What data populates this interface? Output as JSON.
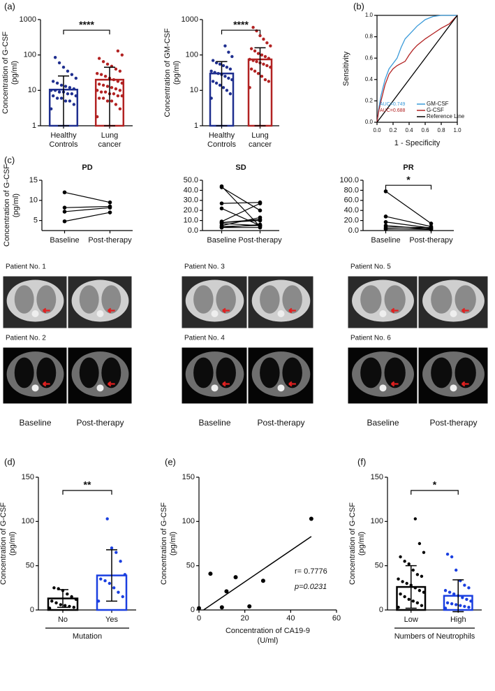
{
  "chart_data": [
    {
      "type": "bar",
      "panel": "(a)",
      "ylabel": [
        "Concentration of G-CSF",
        "(pg/ml)"
      ],
      "categories": [
        "Healthy Controls",
        "Lung cancer"
      ],
      "values": [
        10.5,
        20
      ],
      "errors": [
        15,
        25
      ],
      "colors": [
        "#1f2f8f",
        "#b22222"
      ],
      "log": true,
      "ylim": [
        1,
        1000
      ],
      "yticks": [
        1,
        10,
        100,
        1000
      ],
      "significance": "****",
      "points": [
        [
          3,
          4,
          5,
          5,
          6,
          6,
          7,
          7,
          8,
          8,
          9,
          9,
          10,
          10,
          11,
          12,
          13,
          14,
          16,
          18,
          22,
          28,
          35,
          45,
          60,
          85
        ],
        [
          1.8,
          3,
          4,
          5,
          5,
          6,
          6,
          7,
          7,
          8,
          8,
          9,
          9,
          10,
          10,
          11,
          12,
          13,
          14,
          15,
          16,
          18,
          20,
          22,
          25,
          28,
          30,
          35,
          40,
          48,
          55,
          65,
          80,
          100,
          130
        ]
      ]
    },
    {
      "type": "bar",
      "ylabel": [
        "Concentration of GM-CSF",
        "(pg/ml)"
      ],
      "categories": [
        "Healthy Controls",
        "Lung cancer"
      ],
      "values": [
        30,
        75
      ],
      "errors": [
        35,
        85
      ],
      "colors": [
        "#1f2f8f",
        "#b22222"
      ],
      "log": true,
      "ylim": [
        1,
        1000
      ],
      "yticks": [
        1,
        10,
        100,
        1000
      ],
      "significance": "****",
      "points": [
        [
          6,
          8,
          10,
          12,
          14,
          16,
          18,
          20,
          22,
          25,
          28,
          30,
          32,
          35,
          40,
          45,
          50,
          55,
          60,
          70,
          90,
          120,
          180
        ],
        [
          12,
          18,
          20,
          25,
          30,
          35,
          40,
          45,
          50,
          55,
          60,
          65,
          70,
          75,
          80,
          90,
          100,
          110,
          130,
          150,
          180,
          220,
          280,
          350,
          480,
          600
        ]
      ]
    },
    {
      "type": "line",
      "panel": "(b)",
      "ylabel": [
        "Sensitivity"
      ],
      "xlabel": "1 - Specificity",
      "xlim": [
        0,
        1
      ],
      "ylim": [
        0,
        1
      ],
      "xticks": [
        {
          "value": 0,
          "label": "0.0"
        },
        {
          "value": 0.2,
          "label": "0.2"
        },
        {
          "value": 0.4,
          "label": "0.4"
        },
        {
          "value": 0.6,
          "label": "0.6"
        },
        {
          "value": 0.8,
          "label": "0.8"
        },
        {
          "value": 1,
          "label": "1.0"
        }
      ],
      "yticks": [
        {
          "value": 0,
          "label": "0.0"
        },
        {
          "value": 0.2,
          "label": "0.2"
        },
        {
          "value": 0.4,
          "label": "0.4"
        },
        {
          "value": 0.6,
          "label": "0.6"
        },
        {
          "value": 0.8,
          "label": "0.8"
        },
        {
          "value": 1,
          "label": "1.0"
        }
      ],
      "series": [
        {
          "name": "GM-CSF",
          "color": "#3a9ad9",
          "x": [
            0,
            0.02,
            0.05,
            0.1,
            0.15,
            0.2,
            0.25,
            0.3,
            0.35,
            0.4,
            0.45,
            0.5,
            0.55,
            0.6,
            0.7,
            0.8,
            0.9,
            1
          ],
          "values": [
            0,
            0.12,
            0.25,
            0.4,
            0.5,
            0.55,
            0.6,
            0.7,
            0.78,
            0.82,
            0.86,
            0.9,
            0.93,
            0.96,
            0.99,
            1,
            1,
            1
          ]
        },
        {
          "name": "G-CSF",
          "color": "#b22222",
          "x": [
            0,
            0.02,
            0.05,
            0.1,
            0.15,
            0.2,
            0.25,
            0.3,
            0.35,
            0.4,
            0.45,
            0.5,
            0.55,
            0.6,
            0.7,
            0.8,
            0.9,
            1
          ],
          "values": [
            0,
            0.1,
            0.2,
            0.35,
            0.45,
            0.5,
            0.53,
            0.55,
            0.57,
            0.63,
            0.68,
            0.72,
            0.75,
            0.78,
            0.83,
            0.88,
            0.92,
            1
          ]
        },
        {
          "name": "Reference Line",
          "color": "#000000",
          "x": [
            0,
            1
          ],
          "values": [
            0,
            1
          ]
        }
      ],
      "annotations": [
        {
          "text": "AUC=0.749",
          "color": "#3a9ad9"
        },
        {
          "text": "AUC=0.688",
          "color": "#b22222"
        }
      ]
    },
    {
      "type": "paired",
      "panel": "(c)",
      "title": "PD",
      "ylabel": [
        "Concentration of G-CSF",
        "(pg/ml)"
      ],
      "categories": [
        "Baseline",
        "Post-therapy"
      ],
      "color": "#000000",
      "ylim": [
        2.5,
        15
      ],
      "yticks": [
        5,
        10,
        15
      ],
      "series": [
        {
          "values": [
            12,
            9.5
          ]
        },
        {
          "values": [
            8.2,
            8.5
          ]
        },
        {
          "values": [
            7.2,
            8.2
          ]
        },
        {
          "values": [
            4.8,
            7
          ]
        }
      ]
    },
    {
      "type": "paired",
      "title": "SD",
      "categories": [
        "Baseline",
        "Post-therapy"
      ],
      "color": "#000000",
      "ylim": [
        0,
        50
      ],
      "yticks": [
        {
          "value": 0,
          "label": "0.0"
        },
        {
          "value": 10,
          "label": "10.0"
        },
        {
          "value": 20,
          "label": "20.0"
        },
        {
          "value": 30,
          "label": "30.0"
        },
        {
          "value": 40,
          "label": "40.0"
        },
        {
          "value": 50,
          "label": "50.0"
        }
      ],
      "series": [
        {
          "values": [
            44,
            4
          ]
        },
        {
          "values": [
            43,
            20
          ]
        },
        {
          "values": [
            27,
            28
          ]
        },
        {
          "values": [
            22,
            5
          ]
        },
        {
          "values": [
            9,
            27
          ]
        },
        {
          "values": [
            8,
            11
          ]
        },
        {
          "values": [
            8,
            10
          ]
        },
        {
          "values": [
            7,
            5
          ]
        },
        {
          "values": [
            5,
            13
          ]
        },
        {
          "values": [
            4,
            5
          ]
        },
        {
          "values": [
            3,
            6
          ]
        },
        {
          "values": [
            3,
            3
          ]
        }
      ]
    },
    {
      "type": "paired",
      "title": "PR",
      "categories": [
        "Baseline",
        "Post-therapy"
      ],
      "color": "#000000",
      "ylim": [
        0,
        100
      ],
      "significance": "*",
      "yticks": [
        {
          "value": 0,
          "label": "0.0"
        },
        {
          "value": 20,
          "label": "20.0"
        },
        {
          "value": 40,
          "label": "40.0"
        },
        {
          "value": 60,
          "label": "60.0"
        },
        {
          "value": 80,
          "label": "80.0"
        },
        {
          "value": 100,
          "label": "100.0"
        }
      ],
      "series": [
        {
          "values": [
            78,
            14
          ]
        },
        {
          "values": [
            28,
            8
          ]
        },
        {
          "values": [
            17,
            5
          ]
        },
        {
          "values": [
            10,
            3
          ]
        },
        {
          "values": [
            7,
            6
          ]
        },
        {
          "values": [
            4,
            2
          ]
        },
        {
          "values": [
            3,
            4
          ]
        }
      ]
    },
    {
      "type": "bar",
      "panel": "(d)",
      "ylabel": [
        "Concentration of G-CSF",
        "(pg/ml)"
      ],
      "categories": [
        "No",
        "Yes"
      ],
      "xgroup": "Mutation",
      "values": [
        13,
        39
      ],
      "errors": [
        10,
        29
      ],
      "colors": [
        "#000000",
        "#1a3fe0"
      ],
      "ylim": [
        0,
        150
      ],
      "yticks": [
        0,
        50,
        100,
        150
      ],
      "significance": "**",
      "points": [
        [
          2,
          3,
          4,
          5,
          6,
          8,
          10,
          12,
          15,
          18,
          22,
          24,
          25
        ],
        [
          10,
          15,
          20,
          25,
          30,
          33,
          35,
          40,
          55,
          65,
          70,
          103
        ]
      ]
    },
    {
      "type": "scatter",
      "panel": "(e)",
      "ylabel": [
        "Concentration of G-CSF",
        "(pg/ml)"
      ],
      "xlabel": [
        "Concentration of CA19-9",
        "(U/ml)"
      ],
      "xlim": [
        0,
        60
      ],
      "ylim": [
        0,
        150
      ],
      "xticks": [
        0,
        20,
        40,
        60
      ],
      "yticks": [
        0,
        50,
        100,
        150
      ],
      "color": "#000000",
      "x": [
        0,
        5,
        10,
        12,
        16,
        22,
        28,
        49
      ],
      "values": [
        2,
        41,
        3,
        21,
        37,
        4,
        33,
        103
      ],
      "fit": {
        "x": [
          2,
          49
        ],
        "y": [
          0,
          83
        ]
      },
      "annotations": [
        {
          "text": "r= 0.7776"
        },
        {
          "text": "p=0.0231"
        }
      ]
    },
    {
      "type": "bar",
      "panel": "(f)",
      "ylabel": [
        "Concentration of G-CSF",
        "(pg/ml)"
      ],
      "categories": [
        "Low",
        "High"
      ],
      "xgroup": "Numbers of Neutrophils",
      "values": [
        26,
        16
      ],
      "errors": [
        24,
        18
      ],
      "colors": [
        "#000000",
        "#1a3fe0"
      ],
      "ylim": [
        0,
        150
      ],
      "yticks": [
        0,
        50,
        100,
        150
      ],
      "significance": "*",
      "points": [
        [
          3,
          5,
          8,
          10,
          12,
          15,
          18,
          20,
          22,
          25,
          28,
          30,
          32,
          35,
          38,
          40,
          45,
          52,
          55,
          60,
          65,
          75,
          103
        ],
        [
          2,
          3,
          4,
          5,
          6,
          7,
          8,
          10,
          12,
          14,
          16,
          18,
          20,
          22,
          25,
          28,
          33,
          45,
          60,
          63
        ]
      ]
    }
  ],
  "ct_panel": {
    "rows": [
      [
        "Patient No. 1",
        "Patient No. 3",
        "Patient No. 5"
      ],
      [
        "Patient No. 2",
        "Patient No. 4",
        "Patient No. 6"
      ]
    ],
    "columns": [
      "Baseline",
      "Post-therapy"
    ]
  }
}
